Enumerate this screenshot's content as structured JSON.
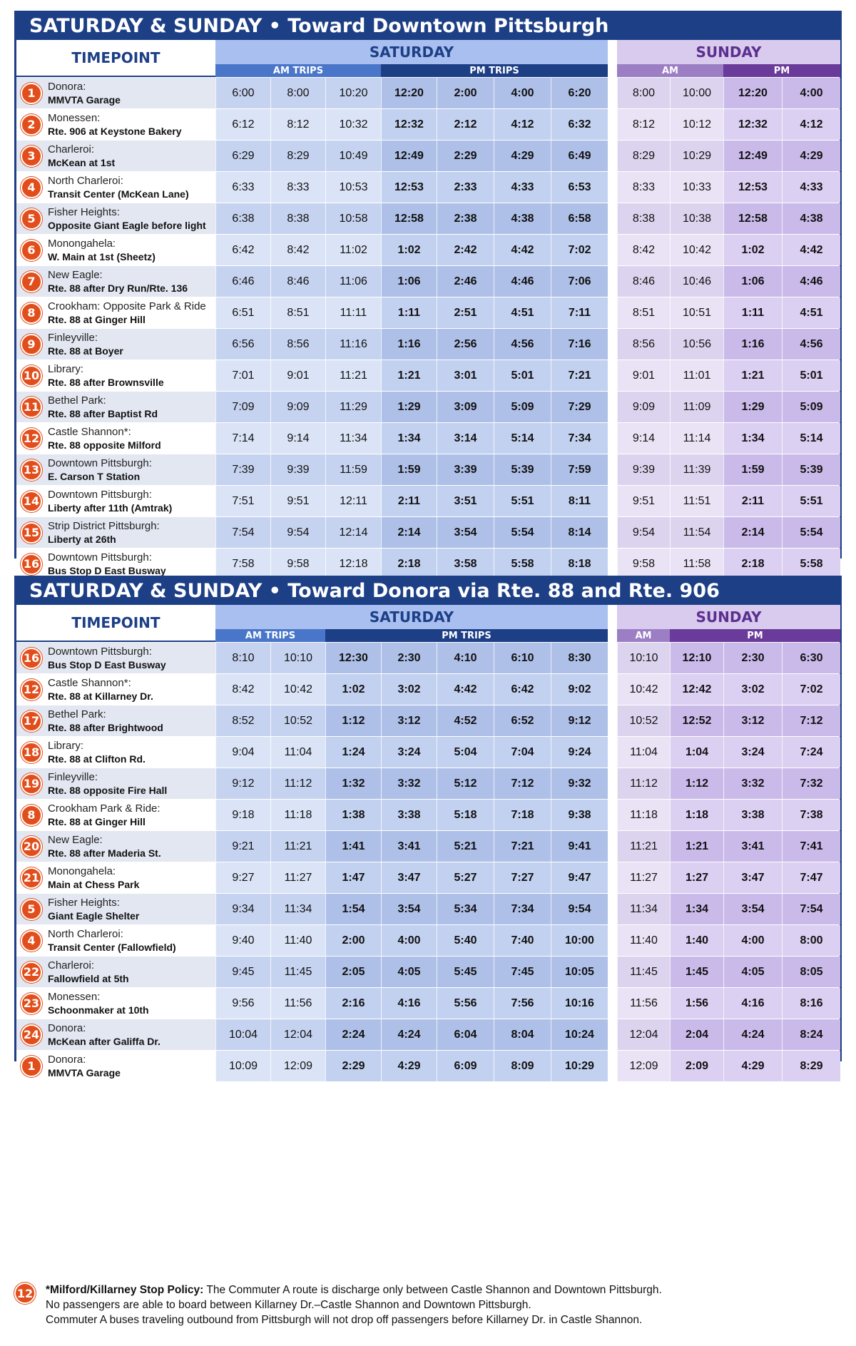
{
  "note": {
    "badge": "12",
    "title": "*Milford/Killarney Stop Policy:",
    "lines": [
      "The Commuter A route is discharge only between Castle Shannon and Downtown Pittsburgh.",
      "No passengers are able to board between Killarney Dr.–Castle Shannon and Downtown Pittsburgh.",
      "Commuter A buses traveling outbound from Pittsburgh will not drop off passengers before Killarney Dr. in Castle Shannon."
    ]
  },
  "tables": [
    {
      "title": "SATURDAY & SUNDAY  •  Toward Downtown Pittsburgh",
      "timepoint_label": "TIMEPOINT",
      "saturday_label": "SATURDAY",
      "sunday_label": "SUNDAY",
      "sat_am_label": "AM TRIPS",
      "sat_pm_label": "PM TRIPS",
      "sun_am_label": "AM",
      "sun_pm_label": "PM",
      "sat_am_count": 3,
      "sun_am_count": 2,
      "rows": [
        {
          "num": "1",
          "city": "Donora:",
          "stop": "MMVTA Garage",
          "sat": [
            "6:00",
            "8:00",
            "10:20",
            "12:20",
            "2:00",
            "4:00",
            "6:20"
          ],
          "sun": [
            "8:00",
            "10:00",
            "12:20",
            "4:00"
          ]
        },
        {
          "num": "2",
          "city": "Monessen:",
          "stop": "Rte. 906 at Keystone Bakery",
          "sat": [
            "6:12",
            "8:12",
            "10:32",
            "12:32",
            "2:12",
            "4:12",
            "6:32"
          ],
          "sun": [
            "8:12",
            "10:12",
            "12:32",
            "4:12"
          ]
        },
        {
          "num": "3",
          "city": "Charleroi:",
          "stop": "McKean at 1st",
          "sat": [
            "6:29",
            "8:29",
            "10:49",
            "12:49",
            "2:29",
            "4:29",
            "6:49"
          ],
          "sun": [
            "8:29",
            "10:29",
            "12:49",
            "4:29"
          ]
        },
        {
          "num": "4",
          "city": "North Charleroi:",
          "stop": "Transit Center (McKean Lane)",
          "sat": [
            "6:33",
            "8:33",
            "10:53",
            "12:53",
            "2:33",
            "4:33",
            "6:53"
          ],
          "sun": [
            "8:33",
            "10:33",
            "12:53",
            "4:33"
          ]
        },
        {
          "num": "5",
          "city": "Fisher Heights:",
          "stop": "Opposite Giant Eagle before light",
          "sat": [
            "6:38",
            "8:38",
            "10:58",
            "12:58",
            "2:38",
            "4:38",
            "6:58"
          ],
          "sun": [
            "8:38",
            "10:38",
            "12:58",
            "4:38"
          ]
        },
        {
          "num": "6",
          "city": "Monongahela:",
          "stop": "W. Main at 1st (Sheetz)",
          "sat": [
            "6:42",
            "8:42",
            "11:02",
            "1:02",
            "2:42",
            "4:42",
            "7:02"
          ],
          "sun": [
            "8:42",
            "10:42",
            "1:02",
            "4:42"
          ]
        },
        {
          "num": "7",
          "city": "New Eagle:",
          "stop": "Rte. 88 after Dry Run/Rte. 136",
          "sat": [
            "6:46",
            "8:46",
            "11:06",
            "1:06",
            "2:46",
            "4:46",
            "7:06"
          ],
          "sun": [
            "8:46",
            "10:46",
            "1:06",
            "4:46"
          ]
        },
        {
          "num": "8",
          "city": "Crookham: Opposite Park & Ride",
          "stop": "Rte. 88 at Ginger Hill",
          "sat": [
            "6:51",
            "8:51",
            "11:11",
            "1:11",
            "2:51",
            "4:51",
            "7:11"
          ],
          "sun": [
            "8:51",
            "10:51",
            "1:11",
            "4:51"
          ]
        },
        {
          "num": "9",
          "city": "Finleyville:",
          "stop": "Rte. 88 at Boyer",
          "sat": [
            "6:56",
            "8:56",
            "11:16",
            "1:16",
            "2:56",
            "4:56",
            "7:16"
          ],
          "sun": [
            "8:56",
            "10:56",
            "1:16",
            "4:56"
          ]
        },
        {
          "num": "10",
          "city": "Library:",
          "stop": "Rte. 88 after Brownsville",
          "sat": [
            "7:01",
            "9:01",
            "11:21",
            "1:21",
            "3:01",
            "5:01",
            "7:21"
          ],
          "sun": [
            "9:01",
            "11:01",
            "1:21",
            "5:01"
          ]
        },
        {
          "num": "11",
          "city": "Bethel Park:",
          "stop": "Rte. 88 after Baptist Rd",
          "sat": [
            "7:09",
            "9:09",
            "11:29",
            "1:29",
            "3:09",
            "5:09",
            "7:29"
          ],
          "sun": [
            "9:09",
            "11:09",
            "1:29",
            "5:09"
          ]
        },
        {
          "num": "12",
          "city": "Castle Shannon*:",
          "stop": "Rte. 88 opposite Milford",
          "sat": [
            "7:14",
            "9:14",
            "11:34",
            "1:34",
            "3:14",
            "5:14",
            "7:34"
          ],
          "sun": [
            "9:14",
            "11:14",
            "1:34",
            "5:14"
          ]
        },
        {
          "num": "13",
          "city": "Downtown Pittsburgh:",
          "stop": "E. Carson T Station",
          "sat": [
            "7:39",
            "9:39",
            "11:59",
            "1:59",
            "3:39",
            "5:39",
            "7:59"
          ],
          "sun": [
            "9:39",
            "11:39",
            "1:59",
            "5:39"
          ]
        },
        {
          "num": "14",
          "city": "Downtown Pittsburgh:",
          "stop": "Liberty after 11th (Amtrak)",
          "sat": [
            "7:51",
            "9:51",
            "12:11",
            "2:11",
            "3:51",
            "5:51",
            "8:11"
          ],
          "sun": [
            "9:51",
            "11:51",
            "2:11",
            "5:51"
          ]
        },
        {
          "num": "15",
          "city": "Strip District Pittsburgh:",
          "stop": "Liberty at 26th",
          "sat": [
            "7:54",
            "9:54",
            "12:14",
            "2:14",
            "3:54",
            "5:54",
            "8:14"
          ],
          "sun": [
            "9:54",
            "11:54",
            "2:14",
            "5:54"
          ]
        },
        {
          "num": "16",
          "city": "Downtown Pittsburgh:",
          "stop": "Bus Stop D East Busway",
          "sat": [
            "7:58",
            "9:58",
            "12:18",
            "2:18",
            "3:58",
            "5:58",
            "8:18"
          ],
          "sun": [
            "9:58",
            "11:58",
            "2:18",
            "5:58"
          ]
        }
      ]
    },
    {
      "title": "SATURDAY & SUNDAY  •  Toward Donora via Rte. 88 and Rte. 906",
      "timepoint_label": "TIMEPOINT",
      "saturday_label": "SATURDAY",
      "sunday_label": "SUNDAY",
      "sat_am_label": "AM TRIPS",
      "sat_pm_label": "PM TRIPS",
      "sun_am_label": "AM",
      "sun_pm_label": "PM",
      "sat_am_count": 2,
      "sun_am_count": 1,
      "rows": [
        {
          "num": "16",
          "city": "Downtown Pittsburgh:",
          "stop": "Bus Stop D East Busway",
          "sat": [
            "8:10",
            "10:10",
            "12:30",
            "2:30",
            "4:10",
            "6:10",
            "8:30"
          ],
          "sun": [
            "10:10",
            "12:10",
            "2:30",
            "6:30"
          ]
        },
        {
          "num": "12",
          "city": "Castle Shannon*:",
          "stop": "Rte. 88 at Killarney Dr.",
          "sat": [
            "8:42",
            "10:42",
            "1:02",
            "3:02",
            "4:42",
            "6:42",
            "9:02"
          ],
          "sun": [
            "10:42",
            "12:42",
            "3:02",
            "7:02"
          ]
        },
        {
          "num": "17",
          "city": "Bethel Park:",
          "stop": "Rte. 88 after Brightwood",
          "sat": [
            "8:52",
            "10:52",
            "1:12",
            "3:12",
            "4:52",
            "6:52",
            "9:12"
          ],
          "sun": [
            "10:52",
            "12:52",
            "3:12",
            "7:12"
          ]
        },
        {
          "num": "18",
          "city": "Library:",
          "stop": "Rte. 88 at Clifton Rd.",
          "sat": [
            "9:04",
            "11:04",
            "1:24",
            "3:24",
            "5:04",
            "7:04",
            "9:24"
          ],
          "sun": [
            "11:04",
            "1:04",
            "3:24",
            "7:24"
          ]
        },
        {
          "num": "19",
          "city": "Finleyville:",
          "stop": "Rte. 88 opposite Fire Hall",
          "sat": [
            "9:12",
            "11:12",
            "1:32",
            "3:32",
            "5:12",
            "7:12",
            "9:32"
          ],
          "sun": [
            "11:12",
            "1:12",
            "3:32",
            "7:32"
          ]
        },
        {
          "num": "8",
          "city": "Crookham Park & Ride:",
          "stop": "Rte. 88 at Ginger Hill",
          "sat": [
            "9:18",
            "11:18",
            "1:38",
            "3:38",
            "5:18",
            "7:18",
            "9:38"
          ],
          "sun": [
            "11:18",
            "1:18",
            "3:38",
            "7:38"
          ]
        },
        {
          "num": "20",
          "city": "New Eagle:",
          "stop": "Rte. 88 after Maderia St.",
          "sat": [
            "9:21",
            "11:21",
            "1:41",
            "3:41",
            "5:21",
            "7:21",
            "9:41"
          ],
          "sun": [
            "11:21",
            "1:21",
            "3:41",
            "7:41"
          ]
        },
        {
          "num": "21",
          "city": "Monongahela:",
          "stop": "Main at Chess Park",
          "sat": [
            "9:27",
            "11:27",
            "1:47",
            "3:47",
            "5:27",
            "7:27",
            "9:47"
          ],
          "sun": [
            "11:27",
            "1:27",
            "3:47",
            "7:47"
          ]
        },
        {
          "num": "5",
          "city": "Fisher Heights:",
          "stop": "Giant Eagle Shelter",
          "sat": [
            "9:34",
            "11:34",
            "1:54",
            "3:54",
            "5:34",
            "7:34",
            "9:54"
          ],
          "sun": [
            "11:34",
            "1:34",
            "3:54",
            "7:54"
          ]
        },
        {
          "num": "4",
          "city": "North Charleroi:",
          "stop": "Transit Center (Fallowfield)",
          "sat": [
            "9:40",
            "11:40",
            "2:00",
            "4:00",
            "5:40",
            "7:40",
            "10:00"
          ],
          "sun": [
            "11:40",
            "1:40",
            "4:00",
            "8:00"
          ]
        },
        {
          "num": "22",
          "city": "Charleroi:",
          "stop": "Fallowfield at 5th",
          "sat": [
            "9:45",
            "11:45",
            "2:05",
            "4:05",
            "5:45",
            "7:45",
            "10:05"
          ],
          "sun": [
            "11:45",
            "1:45",
            "4:05",
            "8:05"
          ]
        },
        {
          "num": "23",
          "city": "Monessen:",
          "stop": "Schoonmaker at 10th",
          "sat": [
            "9:56",
            "11:56",
            "2:16",
            "4:16",
            "5:56",
            "7:56",
            "10:16"
          ],
          "sun": [
            "11:56",
            "1:56",
            "4:16",
            "8:16"
          ]
        },
        {
          "num": "24",
          "city": "Donora:",
          "stop": "McKean after Galiffa Dr.",
          "sat": [
            "10:04",
            "12:04",
            "2:24",
            "4:24",
            "6:04",
            "8:04",
            "10:24"
          ],
          "sun": [
            "12:04",
            "2:04",
            "4:24",
            "8:24"
          ]
        },
        {
          "num": "1",
          "city": "Donora:",
          "stop": "MMVTA Garage",
          "sat": [
            "10:09",
            "12:09",
            "2:29",
            "4:29",
            "6:09",
            "8:09",
            "10:29"
          ],
          "sun": [
            "12:09",
            "2:09",
            "4:29",
            "8:29"
          ]
        }
      ]
    }
  ]
}
